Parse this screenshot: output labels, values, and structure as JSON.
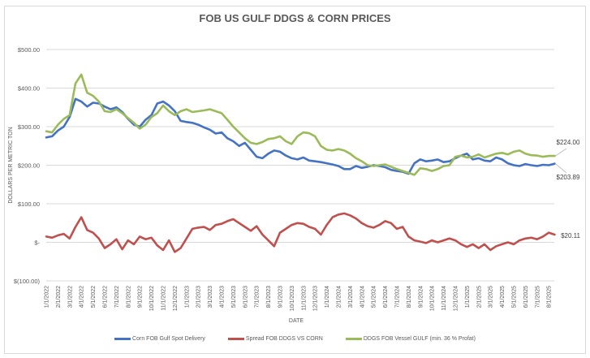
{
  "chart_data": {
    "type": "line",
    "title": "FOB US GULF DDGS & CORN PRICES",
    "xlabel": "DATE",
    "ylabel": "DOLLARS PER METRIC TON",
    "ylim": [
      -100,
      500
    ],
    "yticks": [
      500,
      400,
      300,
      200,
      100,
      0,
      -100
    ],
    "ytick_labels": [
      "$500.00",
      "$400.00",
      "$300.00",
      "$200.00",
      "$100.00",
      "$-",
      "$(100.00)"
    ],
    "grid": true,
    "legend_position": "bottom",
    "x_tick_labels": [
      "1/1/2022",
      "2/1/2022",
      "3/1/2022",
      "4/1/2022",
      "5/1/2022",
      "6/1/2022",
      "7/1/2022",
      "8/1/2022",
      "9/1/2022",
      "10/1/2022",
      "11/1/2022",
      "12/1/2022",
      "1/1/2023",
      "2/1/2023",
      "3/1/2023",
      "4/1/2023",
      "5/1/2023",
      "6/1/2023",
      "7/1/2023",
      "8/1/2023",
      "9/1/2023",
      "10/1/2023",
      "11/1/2023",
      "12/1/2023",
      "1/1/2024",
      "2/1/2024",
      "3/1/2024",
      "4/1/2024",
      "5/1/2024",
      "6/1/2024",
      "7/1/2024",
      "8/1/2024",
      "9/1/2024",
      "10/1/2024",
      "11/1/2024",
      "12/1/2024",
      "1/1/2025",
      "2/1/2025",
      "3/1/2025",
      "4/1/2025",
      "5/1/2025",
      "6/1/2025",
      "7/1/2025",
      "8/1/2025"
    ],
    "points_per_month": 2,
    "series": [
      {
        "name": "Corn FOB Gulf Spot Delivery",
        "color": "#4472c4",
        "end_label": "$203.89",
        "values": [
          272,
          275,
          290,
          300,
          325,
          372,
          365,
          352,
          362,
          360,
          352,
          345,
          350,
          338,
          320,
          305,
          300,
          318,
          330,
          360,
          365,
          355,
          340,
          315,
          312,
          310,
          305,
          298,
          292,
          282,
          285,
          270,
          262,
          250,
          258,
          240,
          222,
          218,
          230,
          238,
          235,
          225,
          218,
          215,
          220,
          212,
          210,
          208,
          205,
          202,
          198,
          190,
          190,
          198,
          193,
          196,
          200,
          198,
          195,
          188,
          185,
          183,
          178,
          205,
          215,
          210,
          212,
          215,
          208,
          210,
          218,
          225,
          230,
          215,
          218,
          212,
          210,
          220,
          215,
          205,
          200,
          198,
          203,
          200,
          198,
          201,
          200,
          204
        ]
      },
      {
        "name": "Spread FOB DDGS VS CORN",
        "color": "#c0504d",
        "end_label": "$20.11",
        "values": [
          15,
          12,
          18,
          22,
          10,
          40,
          65,
          32,
          25,
          10,
          -15,
          -5,
          8,
          -18,
          5,
          -5,
          15,
          8,
          12,
          -8,
          -20,
          5,
          -25,
          -15,
          10,
          35,
          38,
          40,
          32,
          45,
          48,
          55,
          60,
          50,
          40,
          30,
          42,
          20,
          5,
          -10,
          25,
          35,
          45,
          50,
          48,
          40,
          35,
          20,
          45,
          65,
          72,
          75,
          70,
          62,
          50,
          42,
          38,
          45,
          55,
          50,
          35,
          40,
          15,
          5,
          2,
          -2,
          5,
          0,
          5,
          10,
          5,
          -5,
          -12,
          -5,
          -15,
          -5,
          -20,
          -10,
          -5,
          0,
          -5,
          5,
          10,
          12,
          8,
          15,
          25,
          20
        ]
      },
      {
        "name": "DDGS FOB Vessel GULF  (min. 36 % Profat)",
        "color": "#9bbb59",
        "end_label": "$224.00",
        "values": [
          288,
          285,
          305,
          320,
          330,
          412,
          435,
          388,
          380,
          365,
          340,
          338,
          345,
          335,
          322,
          310,
          295,
          305,
          325,
          335,
          355,
          340,
          330,
          340,
          345,
          338,
          340,
          342,
          345,
          340,
          335,
          318,
          300,
          285,
          270,
          258,
          255,
          260,
          268,
          270,
          275,
          262,
          255,
          275,
          285,
          283,
          275,
          250,
          240,
          238,
          242,
          238,
          230,
          218,
          210,
          200,
          198,
          200,
          202,
          196,
          190,
          185,
          180,
          175,
          192,
          190,
          185,
          190,
          198,
          200,
          222,
          225,
          220,
          222,
          228,
          220,
          225,
          230,
          232,
          228,
          235,
          238,
          230,
          226,
          225,
          222,
          224,
          224
        ]
      }
    ]
  }
}
